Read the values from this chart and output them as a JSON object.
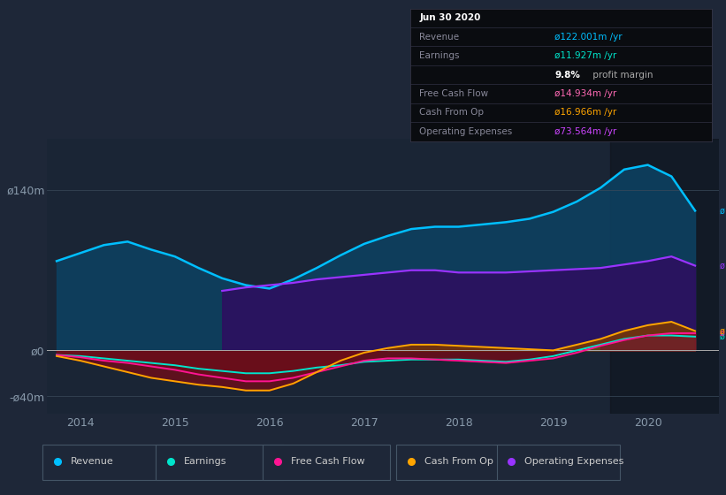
{
  "bg_color": "#1e2738",
  "plot_bg_color": "#1a2535",
  "box_bg": "#0a0c10",
  "x_rev": [
    2013.75,
    2014.0,
    2014.25,
    2014.5,
    2014.75,
    2015.0,
    2015.25,
    2015.5,
    2015.75,
    2016.0,
    2016.25,
    2016.5,
    2016.75,
    2017.0,
    2017.25,
    2017.5,
    2017.75,
    2018.0,
    2018.25,
    2018.5,
    2018.75,
    2019.0,
    2019.25,
    2019.5,
    2019.75,
    2020.0,
    2020.25,
    2020.5
  ],
  "y_rev": [
    78,
    85,
    92,
    95,
    88,
    82,
    72,
    63,
    57,
    54,
    62,
    72,
    83,
    93,
    100,
    106,
    108,
    108,
    110,
    112,
    115,
    121,
    130,
    142,
    158,
    162,
    152,
    122
  ],
  "y_earn": [
    -4,
    -5,
    -7,
    -9,
    -11,
    -13,
    -16,
    -18,
    -20,
    -20,
    -18,
    -15,
    -13,
    -10,
    -9,
    -8,
    -8,
    -8,
    -9,
    -10,
    -8,
    -5,
    0,
    5,
    10,
    13,
    13,
    12
  ],
  "y_fcf": [
    -4,
    -6,
    -9,
    -11,
    -14,
    -17,
    -21,
    -24,
    -27,
    -27,
    -24,
    -19,
    -14,
    -9,
    -7,
    -7,
    -8,
    -9,
    -10,
    -11,
    -9,
    -7,
    -2,
    4,
    9,
    13,
    15,
    15
  ],
  "y_cop": [
    -5,
    -9,
    -14,
    -19,
    -24,
    -27,
    -30,
    -32,
    -35,
    -35,
    -29,
    -19,
    -9,
    -2,
    2,
    5,
    5,
    4,
    3,
    2,
    1,
    0,
    5,
    10,
    17,
    22,
    25,
    17
  ],
  "x_opex": [
    2015.5,
    2015.75,
    2016.0,
    2016.25,
    2016.5,
    2016.75,
    2017.0,
    2017.25,
    2017.5,
    2017.75,
    2018.0,
    2018.25,
    2018.5,
    2018.75,
    2019.0,
    2019.25,
    2019.5,
    2019.75,
    2020.0,
    2020.25,
    2020.5
  ],
  "y_opex": [
    52,
    55,
    57,
    59,
    62,
    64,
    66,
    68,
    70,
    70,
    68,
    68,
    68,
    69,
    70,
    71,
    72,
    75,
    78,
    82,
    74
  ],
  "rev_color": "#00bfff",
  "earn_color": "#00e5cc",
  "fcf_color": "#ff1493",
  "cop_color": "#ffa500",
  "opex_color": "#9933ff",
  "rev_fill": "#0d4060",
  "opex_fill": "#2d1060",
  "neg_fill": "#6b0e1a",
  "ylim": [
    -55,
    185
  ],
  "xlim": [
    2013.65,
    2020.75
  ],
  "yticks": [
    -40,
    0,
    140
  ],
  "ytick_labels": [
    "-ø40m",
    "ø0",
    "ø140m"
  ],
  "xticks": [
    2014,
    2015,
    2016,
    2017,
    2018,
    2019,
    2020
  ],
  "shade_start": 2019.6,
  "legend_items": [
    {
      "label": "Revenue",
      "color": "#00bfff"
    },
    {
      "label": "Earnings",
      "color": "#00e5cc"
    },
    {
      "label": "Free Cash Flow",
      "color": "#ff1493"
    },
    {
      "label": "Cash From Op",
      "color": "#ffa500"
    },
    {
      "label": "Operating Expenses",
      "color": "#9933ff"
    }
  ],
  "info_rows": [
    {
      "label": "Jun 30 2020",
      "value": "",
      "vcolor": "#ffffff",
      "bold": true,
      "lcolor": "#ffffff"
    },
    {
      "label": "Revenue",
      "value": "ø122.001m /yr",
      "vcolor": "#00bfff",
      "bold": false,
      "lcolor": "#888899"
    },
    {
      "label": "Earnings",
      "value": "ø11.927m /yr",
      "vcolor": "#00e5cc",
      "bold": false,
      "lcolor": "#888899"
    },
    {
      "label": "",
      "value": "9.8% profit margin",
      "vcolor": "#ffffff",
      "bold": false,
      "lcolor": "#888899"
    },
    {
      "label": "Free Cash Flow",
      "value": "ø14.934m /yr",
      "vcolor": "#ff69b4",
      "bold": false,
      "lcolor": "#888899"
    },
    {
      "label": "Cash From Op",
      "value": "ø16.966m /yr",
      "vcolor": "#ffa500",
      "bold": false,
      "lcolor": "#888899"
    },
    {
      "label": "Operating Expenses",
      "value": "ø73.564m /yr",
      "vcolor": "#cc44ff",
      "bold": false,
      "lcolor": "#888899"
    }
  ]
}
